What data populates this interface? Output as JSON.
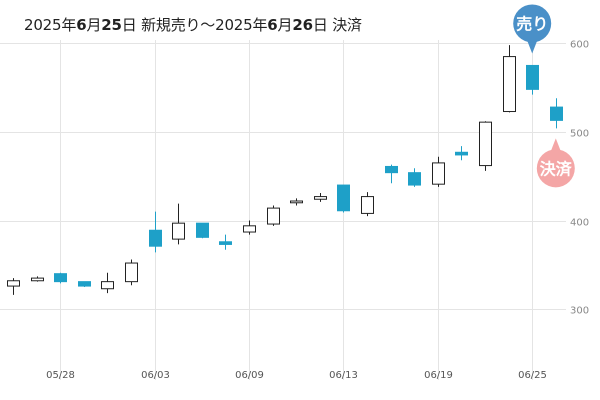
{
  "title": {
    "date1_year": "2025年",
    "date1_month": "6",
    "date1_mid": "月",
    "date1_day": "25",
    "date1_suffix": "日 新規売り〜",
    "date2_year": "2025年",
    "date2_month": "6",
    "date2_mid": "月",
    "date2_day": "26",
    "date2_suffix": "日 決済"
  },
  "badges": {
    "sell": {
      "label": "売り",
      "color": "#4a90c8",
      "date": "06/25"
    },
    "settle": {
      "label": "決済",
      "color": "#f4a6a6",
      "date": "06/26"
    }
  },
  "colors": {
    "up": "#ffffff",
    "up_border": "#222222",
    "down": "#1ea0c8",
    "grid": "#e4e4e4"
  },
  "chart_data": {
    "type": "candlestick",
    "ylim": [
      220,
      615
    ],
    "yticks": [
      300,
      400,
      500,
      600
    ],
    "xtick_labels": [
      {
        "date": "05/28",
        "index": 2
      },
      {
        "date": "06/03",
        "index": 6
      },
      {
        "date": "06/09",
        "index": 10
      },
      {
        "date": "06/13",
        "index": 14
      },
      {
        "date": "06/19",
        "index": 18
      },
      {
        "date": "06/25",
        "index": 22
      }
    ],
    "candles": [
      {
        "open": 326,
        "high": 335,
        "low": 316,
        "close": 332
      },
      {
        "open": 332,
        "high": 337,
        "low": 331,
        "close": 335
      },
      {
        "open": 340,
        "high": 341,
        "low": 329,
        "close": 331
      },
      {
        "open": 331,
        "high": 331,
        "low": 325,
        "close": 326
      },
      {
        "open": 323,
        "high": 341,
        "low": 318,
        "close": 331
      },
      {
        "open": 331,
        "high": 356,
        "low": 327,
        "close": 352
      },
      {
        "open": 389,
        "high": 410,
        "low": 364,
        "close": 371
      },
      {
        "open": 379,
        "high": 419,
        "low": 373,
        "close": 397
      },
      {
        "open": 397,
        "high": 397,
        "low": 380,
        "close": 381
      },
      {
        "open": 376,
        "high": 384,
        "low": 367,
        "close": 373
      },
      {
        "open": 387,
        "high": 400,
        "low": 384,
        "close": 394
      },
      {
        "open": 396,
        "high": 417,
        "low": 394,
        "close": 414
      },
      {
        "open": 420,
        "high": 425,
        "low": 417,
        "close": 422
      },
      {
        "open": 424,
        "high": 431,
        "low": 421,
        "close": 427
      },
      {
        "open": 440,
        "high": 440,
        "low": 409,
        "close": 411
      },
      {
        "open": 408,
        "high": 432,
        "low": 405,
        "close": 427
      },
      {
        "open": 461,
        "high": 463,
        "low": 442,
        "close": 454
      },
      {
        "open": 454,
        "high": 459,
        "low": 438,
        "close": 440
      },
      {
        "open": 441,
        "high": 472,
        "low": 438,
        "close": 465
      },
      {
        "open": 477,
        "high": 484,
        "low": 468,
        "close": 474
      },
      {
        "open": 462,
        "high": 512,
        "low": 456,
        "close": 511
      },
      {
        "open": 523,
        "high": 598,
        "low": 522,
        "close": 585
      },
      {
        "open": 575,
        "high": 575,
        "low": 542,
        "close": 548
      },
      {
        "open": 528,
        "high": 538,
        "low": 504,
        "close": 513
      }
    ]
  }
}
